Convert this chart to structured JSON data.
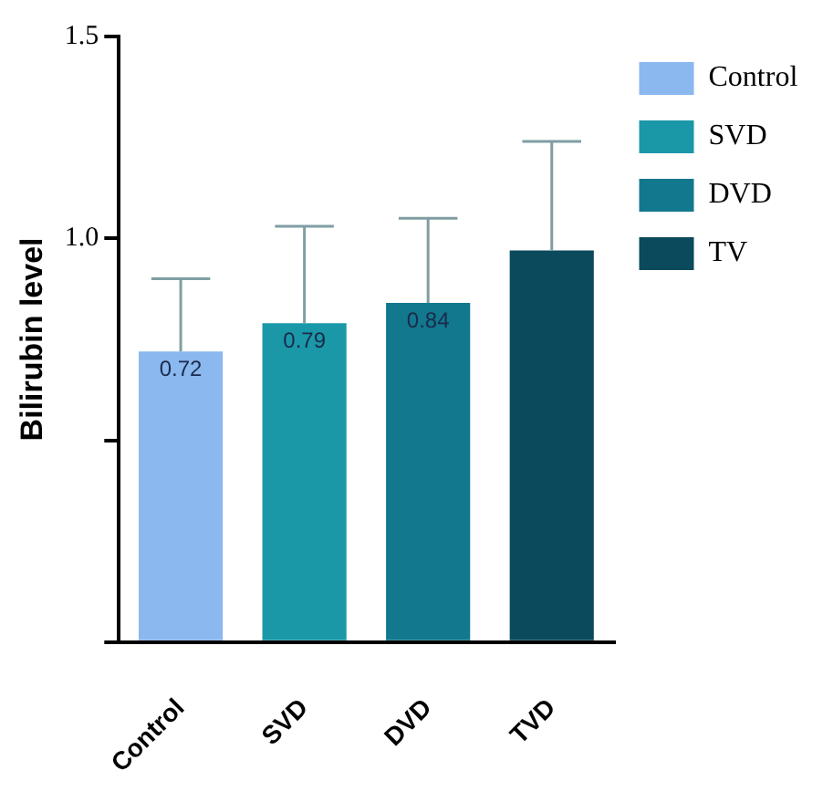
{
  "chart_data": {
    "type": "bar",
    "ylabel": "Bilirubin level",
    "categories": [
      "Control",
      "SVD",
      "DVD",
      "TVD"
    ],
    "series": [
      {
        "name": "Control",
        "color": "#8ab8ef",
        "values": [
          0.72,
          null,
          null,
          null
        ],
        "errors": [
          [
            0.72,
            0.9
          ],
          null,
          null,
          null
        ],
        "value_labels": [
          "0.72",
          null,
          null,
          null
        ]
      },
      {
        "name": "SVD",
        "color": "#1a98a8",
        "values": [
          null,
          0.79,
          null,
          null
        ],
        "errors": [
          null,
          [
            0.79,
            1.03
          ],
          null,
          null
        ],
        "value_labels": [
          null,
          "0.79",
          null,
          null
        ]
      },
      {
        "name": "DVD",
        "color": "#12788e",
        "values": [
          null,
          null,
          0.84,
          null
        ],
        "errors": [
          null,
          null,
          [
            0.84,
            1.05
          ],
          null
        ],
        "value_labels": [
          null,
          null,
          "0.84",
          null
        ]
      },
      {
        "name": "TV",
        "color": "#0b4a5c",
        "values": [
          null,
          null,
          null,
          0.97
        ],
        "errors": [
          null,
          null,
          null,
          [
            0.97,
            1.24
          ]
        ],
        "value_labels": [
          null,
          null,
          null,
          null
        ]
      }
    ],
    "ylim": [
      0,
      1.5
    ],
    "yticks": [
      {
        "value": 0,
        "label": null
      },
      {
        "value": 0.5,
        "label": null
      },
      {
        "value": 1,
        "label": "1.0"
      },
      {
        "value": 1.5,
        "label": "1.5"
      }
    ],
    "grid": false,
    "legend": "top right"
  }
}
